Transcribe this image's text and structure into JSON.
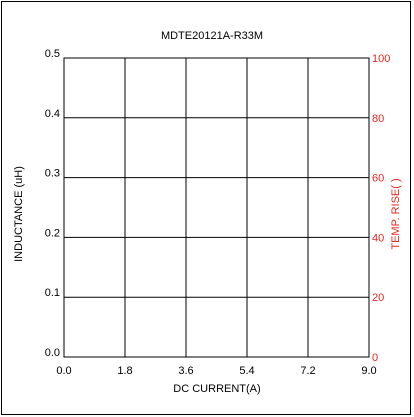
{
  "chart_data": {
    "type": "line",
    "title": "MDTE20121A-R33M",
    "xlabel": "DC CURRENT(A)",
    "ylabel": "INDUCTANCE (uH)",
    "y2label": "TEMP. RISE(  )",
    "xlim": [
      0.0,
      9.0
    ],
    "ylim": [
      0.0,
      0.5
    ],
    "y2lim": [
      0,
      100
    ],
    "x_ticks": [
      "0.0",
      "1.8",
      "3.6",
      "5.4",
      "7.2",
      "9.0"
    ],
    "y_ticks": [
      "0.0",
      "0.1",
      "0.2",
      "0.3",
      "0.4",
      "0.5"
    ],
    "y2_ticks": [
      "0",
      "20",
      "40",
      "60",
      "80",
      "100"
    ],
    "grid": true,
    "series": []
  },
  "colors": {
    "axis": "#000000",
    "grid": "#000000",
    "secondary_axis": "#e8261f"
  }
}
